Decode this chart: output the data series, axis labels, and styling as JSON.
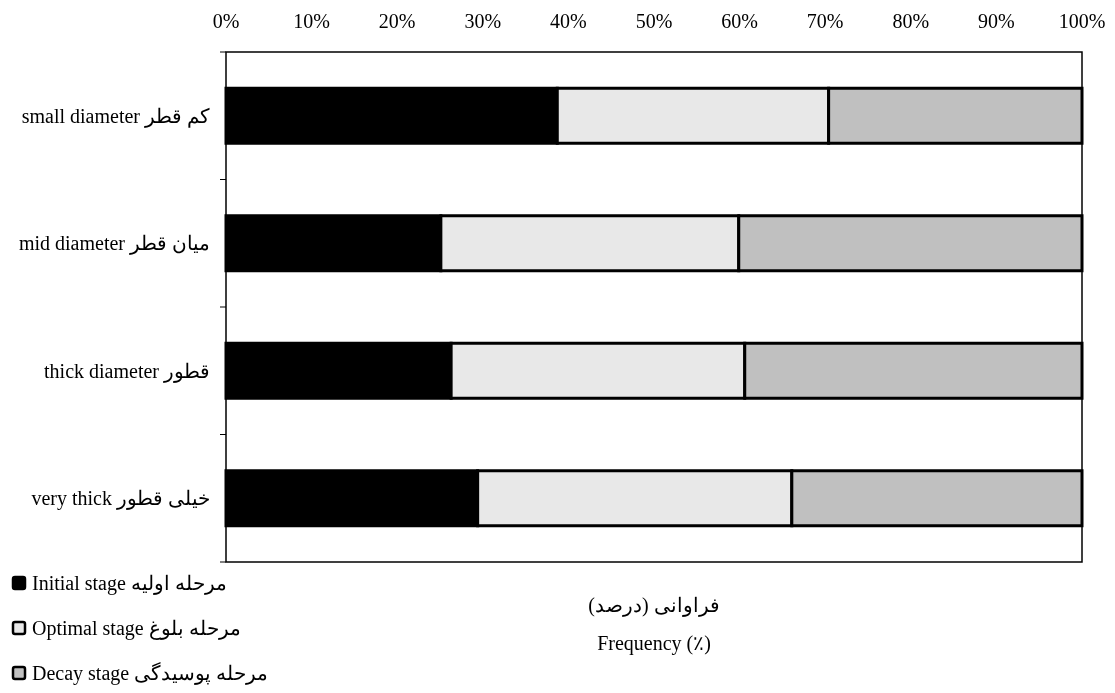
{
  "chart_data": {
    "type": "bar",
    "orientation": "horizontal",
    "stacked": true,
    "categories": [
      "small diameter  کم قطر",
      "mid diameter میان قطر",
      "thick diameter  قطور",
      "very thick خیلی قطور"
    ],
    "series": [
      {
        "name": "Initial stage مرحله اولیه",
        "color": "#000000",
        "values": [
          38.7,
          25.1,
          26.3,
          29.4
        ]
      },
      {
        "name": "Optimal stage مرحله بلوغ",
        "color": "#e8e8e8",
        "values": [
          31.7,
          34.8,
          34.3,
          36.7
        ]
      },
      {
        "name": "Decay stage مرحله پوسیدگی",
        "color": "#c0c0c0",
        "values": [
          29.6,
          40.1,
          39.4,
          33.9
        ]
      }
    ],
    "xlim": [
      0,
      100
    ],
    "xticks": [
      {
        "value": 0,
        "label": "0%"
      },
      {
        "value": 10,
        "label": "10%"
      },
      {
        "value": 20,
        "label": "20%"
      },
      {
        "value": 30,
        "label": "30%"
      },
      {
        "value": 40,
        "label": "40%"
      },
      {
        "value": 50,
        "label": "50%"
      },
      {
        "value": 60,
        "label": "60%"
      },
      {
        "value": 70,
        "label": "70%"
      },
      {
        "value": 80,
        "label": "80%"
      },
      {
        "value": 90,
        "label": "90%"
      },
      {
        "value": 100,
        "label": "100%"
      }
    ],
    "xlabel": "فراوانی (درصد)\nFrequency (٪)",
    "grid": false,
    "legend": "bottom left"
  }
}
